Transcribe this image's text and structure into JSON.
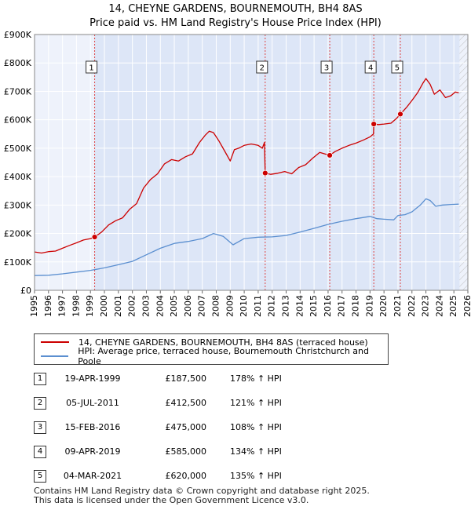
{
  "title_line1": "14, CHEYNE GARDENS, BOURNEMOUTH, BH4 8AS",
  "title_line2": "Price paid vs. HM Land Registry's House Price Index (HPI)",
  "legend": {
    "property": "14, CHEYNE GARDENS, BOURNEMOUTH, BH4 8AS (terraced house)",
    "hpi": "HPI: Average price, terraced house, Bournemouth Christchurch and Poole"
  },
  "colors": {
    "property": "#cc0000",
    "hpi": "#5b8fd0",
    "shade": "#dde6f7",
    "vline": "#dd4444"
  },
  "transactions": [
    {
      "num": "1",
      "date": "19-APR-1999",
      "price": "£187,500",
      "hpi": "178% ↑ HPI"
    },
    {
      "num": "2",
      "date": "05-JUL-2011",
      "price": "£412,500",
      "hpi": "121% ↑ HPI"
    },
    {
      "num": "3",
      "date": "15-FEB-2016",
      "price": "£475,000",
      "hpi": "108% ↑ HPI"
    },
    {
      "num": "4",
      "date": "09-APR-2019",
      "price": "£585,000",
      "hpi": "134% ↑ HPI"
    },
    {
      "num": "5",
      "date": "04-MAR-2021",
      "price": "£620,000",
      "hpi": "135% ↑ HPI"
    }
  ],
  "footer_line1": "Contains HM Land Registry data © Crown copyright and database right 2025.",
  "footer_line2": "This data is licensed under the Open Government Licence v3.0.",
  "chart_data": {
    "type": "line",
    "title": "Price paid vs. HM Land Registry's House Price Index (HPI)",
    "xlabel": "",
    "ylabel": "",
    "xlim": [
      1995,
      2026
    ],
    "ylim": [
      0,
      900000
    ],
    "y_ticks": [
      0,
      100000,
      200000,
      300000,
      400000,
      500000,
      600000,
      700000,
      800000,
      900000
    ],
    "y_tick_labels": [
      "£0",
      "£100K",
      "£200K",
      "£300K",
      "£400K",
      "£500K",
      "£600K",
      "£700K",
      "£800K",
      "£900K"
    ],
    "x_ticks": [
      1995,
      1996,
      1997,
      1998,
      1999,
      2000,
      2001,
      2002,
      2003,
      2004,
      2005,
      2006,
      2007,
      2008,
      2009,
      2010,
      2011,
      2012,
      2013,
      2014,
      2015,
      2016,
      2017,
      2018,
      2019,
      2020,
      2021,
      2022,
      2023,
      2024,
      2025,
      2026
    ],
    "x_tick_labels": [
      "1995",
      "1996",
      "1997",
      "1998",
      "1999",
      "2000",
      "2001",
      "2002",
      "2003",
      "2004",
      "2005",
      "2006",
      "2007",
      "2008",
      "2009",
      "2010",
      "2011",
      "2012",
      "2013",
      "2014",
      "2015",
      "2016",
      "2017",
      "2018",
      "2019",
      "2020",
      "2021",
      "2022",
      "2023",
      "2024",
      "2025",
      "2026"
    ],
    "shaded_region": [
      1999.3,
      2025.4
    ],
    "hatched_region": [
      2025.4,
      2026
    ],
    "grid": true,
    "series": [
      {
        "name": "14, CHEYNE GARDENS, BOURNEMOUTH, BH4 8AS (terraced house)",
        "x": [
          1995,
          1995.5,
          1996,
          1996.5,
          1997,
          1997.5,
          1998,
          1998.5,
          1999.0,
          1999.3,
          1999.8,
          2000.3,
          2000.8,
          2001.3,
          2001.8,
          2002.3,
          2002.8,
          2003.3,
          2003.8,
          2004.3,
          2004.8,
          2005.3,
          2005.8,
          2006.3,
          2006.8,
          2007.2,
          2007.5,
          2007.8,
          2008.2,
          2008.6,
          2009.0,
          2009.3,
          2009.6,
          2010.0,
          2010.5,
          2011.0,
          2011.3,
          2011.45,
          2011.5,
          2011.9,
          2012.4,
          2012.9,
          2013.4,
          2013.9,
          2014.4,
          2014.9,
          2015.4,
          2015.9,
          2016.12,
          2016.5,
          2017.0,
          2017.5,
          2018.0,
          2018.5,
          2019.0,
          2019.25,
          2019.27,
          2019.6,
          2020.0,
          2020.5,
          2020.9,
          2021.17,
          2021.6,
          2022.0,
          2022.4,
          2022.8,
          2023.0,
          2023.3,
          2023.6,
          2024.0,
          2024.4,
          2024.8,
          2025.1,
          2025.35
        ],
        "values": [
          135000,
          131000,
          136000,
          138000,
          148000,
          158000,
          167000,
          177000,
          182000,
          187500,
          205000,
          230000,
          245000,
          255000,
          285000,
          305000,
          360000,
          390000,
          410000,
          445000,
          460000,
          455000,
          470000,
          480000,
          520000,
          545000,
          560000,
          555000,
          525000,
          490000,
          455000,
          495000,
          500000,
          510000,
          515000,
          510000,
          500000,
          520000,
          412500,
          408000,
          412000,
          418000,
          410000,
          432000,
          442000,
          465000,
          485000,
          478000,
          475000,
          488000,
          500000,
          510000,
          518000,
          528000,
          540000,
          550000,
          585000,
          583000,
          585000,
          588000,
          605000,
          620000,
          643000,
          668000,
          695000,
          730000,
          745000,
          725000,
          690000,
          705000,
          678000,
          685000,
          698000,
          695000
        ]
      },
      {
        "name": "HPI: Average price, terraced house, Bournemouth Christchurch and Poole",
        "x": [
          1995,
          1996,
          1997,
          1998,
          1999,
          2000,
          2001,
          2002,
          2003,
          2004,
          2005,
          2006,
          2007,
          2007.8,
          2008.5,
          2009.2,
          2010,
          2011,
          2012,
          2013,
          2014,
          2015,
          2016,
          2017,
          2018,
          2019,
          2019.5,
          2020,
          2020.7,
          2021,
          2021.5,
          2022,
          2022.6,
          2023.0,
          2023.3,
          2023.7,
          2024.2,
          2024.8,
          2025.35
        ],
        "values": [
          52000,
          53000,
          58000,
          64000,
          70000,
          79000,
          90000,
          102000,
          125000,
          148000,
          165000,
          172000,
          182000,
          200000,
          190000,
          160000,
          182000,
          187000,
          188000,
          193000,
          205000,
          218000,
          232000,
          243000,
          252000,
          260000,
          252000,
          250000,
          248000,
          263000,
          266000,
          276000,
          300000,
          322000,
          316000,
          296000,
          300000,
          302000,
          303000
        ]
      }
    ],
    "markers": [
      {
        "label": "1",
        "x": 1999.3,
        "y": 187500
      },
      {
        "label": "2",
        "x": 2011.5,
        "y": 412500
      },
      {
        "label": "3",
        "x": 2016.12,
        "y": 475000
      },
      {
        "label": "4",
        "x": 2019.27,
        "y": 585000
      },
      {
        "label": "5",
        "x": 2021.17,
        "y": 620000
      }
    ],
    "legend_position": "bottom"
  }
}
